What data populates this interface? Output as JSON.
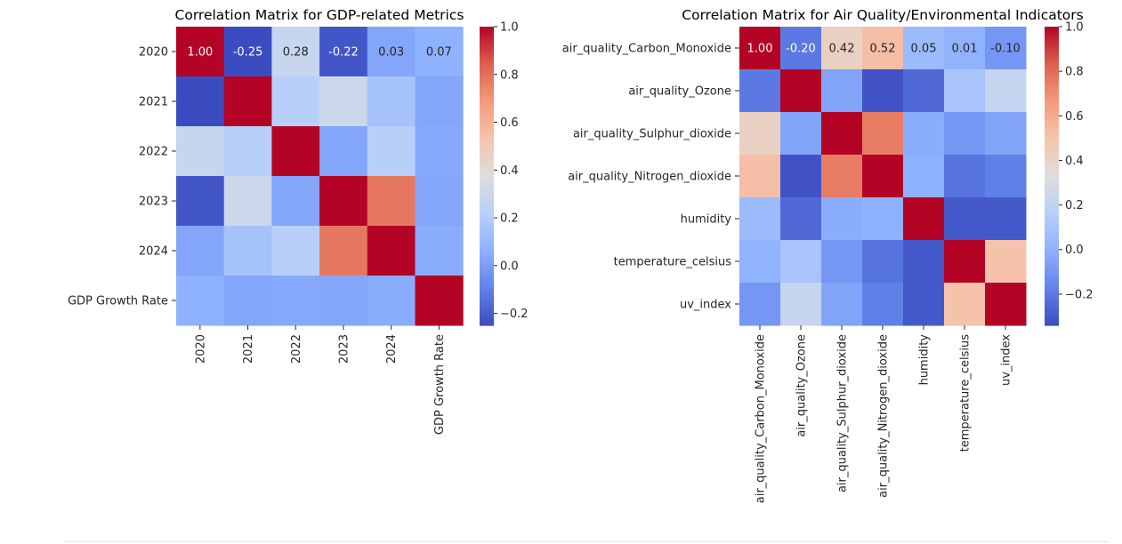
{
  "chart_data": [
    {
      "type": "heatmap",
      "title": "Correlation Matrix for GDP-related Metrics",
      "row_labels": [
        "2020",
        "2021",
        "2022",
        "2023",
        "2024",
        "GDP Growth Rate"
      ],
      "col_labels": [
        "2020",
        "2021",
        "2022",
        "2023",
        "2024",
        "GDP Growth Rate"
      ],
      "values": [
        [
          1.0,
          -0.25,
          0.28,
          -0.22,
          0.03,
          0.07
        ],
        [
          -0.25,
          1.0,
          0.22,
          0.3,
          0.15,
          0.03
        ],
        [
          0.28,
          0.22,
          1.0,
          0.03,
          0.22,
          0.04
        ],
        [
          -0.22,
          0.3,
          0.03,
          1.0,
          0.78,
          0.03
        ],
        [
          0.03,
          0.15,
          0.22,
          0.78,
          1.0,
          0.05
        ],
        [
          0.07,
          0.03,
          0.04,
          0.03,
          0.05,
          1.0
        ]
      ],
      "annotated_row": 0,
      "colorbar": {
        "vmin": -0.25,
        "vmax": 1.0,
        "ticks": [
          1.0,
          0.8,
          0.6,
          0.4,
          0.2,
          0.0,
          -0.2
        ],
        "tick_labels": [
          "1.0",
          "0.8",
          "0.6",
          "0.4",
          "0.2",
          "0.0",
          "−0.2"
        ]
      },
      "colormap": "coolwarm"
    },
    {
      "type": "heatmap",
      "title": "Correlation Matrix for Air Quality/Environmental Indicators",
      "row_labels": [
        "air_quality_Carbon_Monoxide",
        "air_quality_Ozone",
        "air_quality_Sulphur_dioxide",
        "air_quality_Nitrogen_dioxide",
        "humidity",
        "temperature_celsius",
        "uv_index"
      ],
      "col_labels": [
        "air_quality_Carbon_Monoxide",
        "air_quality_Ozone",
        "air_quality_Sulphur_dioxide",
        "air_quality_Nitrogen_dioxide",
        "humidity",
        "temperature_celsius",
        "uv_index"
      ],
      "values": [
        [
          1.0,
          -0.2,
          0.42,
          0.52,
          0.05,
          0.01,
          -0.1
        ],
        [
          -0.2,
          1.0,
          -0.05,
          -0.32,
          -0.25,
          0.1,
          0.22
        ],
        [
          0.42,
          -0.05,
          1.0,
          0.75,
          -0.02,
          -0.1,
          -0.05
        ],
        [
          0.52,
          -0.32,
          0.75,
          1.0,
          0.0,
          -0.22,
          -0.18
        ],
        [
          0.05,
          -0.25,
          -0.02,
          0.0,
          1.0,
          -0.3,
          -0.3
        ],
        [
          0.01,
          0.1,
          -0.1,
          -0.22,
          -0.3,
          1.0,
          0.5
        ],
        [
          -0.1,
          0.22,
          -0.05,
          -0.18,
          -0.3,
          0.5,
          1.0
        ]
      ],
      "annotated_row": 0,
      "colorbar": {
        "vmin": -0.34,
        "vmax": 1.0,
        "ticks": [
          1.0,
          0.8,
          0.6,
          0.4,
          0.2,
          0.0,
          -0.2
        ],
        "tick_labels": [
          "1.0",
          "0.8",
          "0.6",
          "0.4",
          "0.2",
          "0.0",
          "−0.2"
        ]
      },
      "colormap": "coolwarm"
    }
  ]
}
